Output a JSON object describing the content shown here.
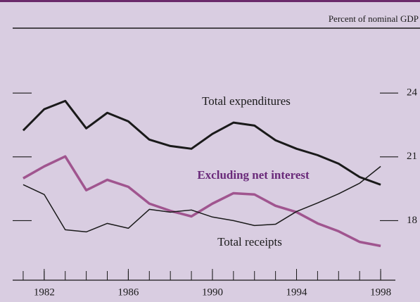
{
  "chart_data": {
    "type": "line",
    "subtitle": "Percent of nominal GDP",
    "x": [
      1981,
      1982,
      1983,
      1984,
      1985,
      1986,
      1987,
      1988,
      1989,
      1990,
      1991,
      1992,
      1993,
      1994,
      1995,
      1996,
      1997,
      1998
    ],
    "series": [
      {
        "name": "Total expenditures",
        "color": "#1a1a1a",
        "width": 3,
        "values": [
          22.24,
          23.24,
          23.63,
          22.34,
          23.07,
          22.67,
          21.81,
          21.51,
          21.38,
          22.08,
          22.61,
          22.47,
          21.78,
          21.38,
          21.08,
          20.68,
          20.05,
          19.69
        ]
      },
      {
        "name": "Excluding net interest",
        "color": "#a0558f",
        "width": 3.5,
        "values": [
          19.99,
          20.55,
          21.02,
          19.43,
          19.92,
          19.59,
          18.8,
          18.46,
          18.2,
          18.8,
          19.29,
          19.23,
          18.7,
          18.4,
          17.87,
          17.5,
          17.0,
          16.81
        ]
      },
      {
        "name": "Total receipts",
        "color": "#1a1a1a",
        "width": 1.5,
        "values": [
          19.69,
          19.23,
          17.57,
          17.47,
          17.87,
          17.64,
          18.53,
          18.4,
          18.5,
          18.17,
          18.0,
          17.77,
          17.83,
          18.43,
          18.83,
          19.26,
          19.76,
          20.55
        ]
      }
    ],
    "xlim": [
      1980.5,
      1998.7
    ],
    "xticks": [
      1982,
      1986,
      1990,
      1994,
      1998
    ],
    "xminor_ticks": [
      1981,
      1982,
      1983,
      1984,
      1985,
      1986,
      1987,
      1988,
      1989,
      1990,
      1991,
      1992,
      1993,
      1994,
      1995,
      1996,
      1997,
      1998
    ],
    "ylim": [
      15.2,
      24.8
    ],
    "yticks": [
      18,
      21,
      24
    ]
  }
}
